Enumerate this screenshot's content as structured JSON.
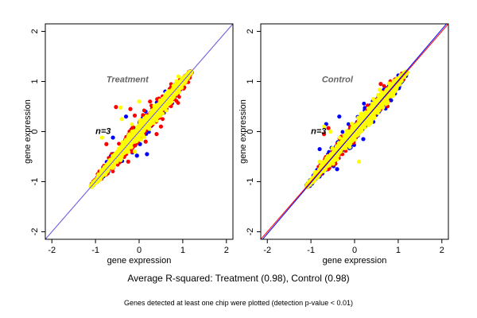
{
  "chart_data": [
    {
      "type": "scatter",
      "title": "Treatment",
      "annotation": "n=3",
      "xlabel": "gene expression",
      "ylabel": "gene expression",
      "xlim": [
        -2.15,
        2.15
      ],
      "ylim": [
        -2.15,
        2.15
      ],
      "xticks": [
        "-2",
        "-1",
        "0",
        "1",
        "2"
      ],
      "yticks": [
        "-2",
        "-1",
        "0",
        "1",
        "2"
      ],
      "grid": false,
      "reference_lines": [
        {
          "slope": 1,
          "intercept": 0,
          "color": "#ff8c00"
        },
        {
          "slope": 1,
          "intercept": 0,
          "color": "#6060ff"
        }
      ],
      "cloud": {
        "x_range": [
          -1.1,
          1.2
        ],
        "spread": {
          "blue": 0.16,
          "red": 0.2,
          "yellow": 0.14
        },
        "seed": 7
      },
      "series": [
        {
          "name": "blue",
          "color": "#0000ff",
          "points": [
            [
              0.6,
              0.8
            ],
            [
              0.7,
              0.55
            ],
            [
              0.18,
              -0.45
            ],
            [
              0.02,
              -0.25
            ],
            [
              -0.05,
              -0.48
            ],
            [
              -0.3,
              0.3
            ],
            [
              -0.6,
              -0.12
            ]
          ]
        },
        {
          "name": "red",
          "color": "#ff0000",
          "points": [
            [
              -0.53,
              0.49
            ],
            [
              -0.2,
              0.45
            ],
            [
              0.25,
              0.6
            ],
            [
              -0.1,
              0.32
            ],
            [
              0.5,
              0.1
            ],
            [
              0.4,
              -0.05
            ],
            [
              0.15,
              -0.2
            ],
            [
              -0.75,
              -0.25
            ],
            [
              -0.25,
              -0.6
            ],
            [
              -0.3,
              -0.45
            ],
            [
              0.7,
              0.85
            ],
            [
              0.4,
              0.45
            ]
          ]
        },
        {
          "name": "yellow",
          "color": "#ffff00",
          "points": [
            [
              -0.42,
              0.48
            ],
            [
              -0.4,
              0.25
            ],
            [
              0.0,
              0.6
            ],
            [
              -0.85,
              -0.12
            ],
            [
              -0.1,
              -0.4
            ],
            [
              0.9,
              1.1
            ]
          ]
        }
      ]
    },
    {
      "type": "scatter",
      "title": "Control",
      "annotation": "n=3",
      "xlabel": "gene expression",
      "ylabel": "gene expression",
      "xlim": [
        -2.15,
        2.15
      ],
      "ylim": [
        -2.15,
        2.15
      ],
      "xticks": [
        "-2",
        "-1",
        "0",
        "1",
        "2"
      ],
      "yticks": [
        "-2",
        "-1",
        "0",
        "1",
        "2"
      ],
      "grid": false,
      "reference_lines": [
        {
          "slope": 1,
          "intercept": 0,
          "color": "#ff0000"
        },
        {
          "slope": 1.02,
          "intercept": 0,
          "color": "#0000ff"
        }
      ],
      "cloud": {
        "x_range": [
          -1.1,
          1.2
        ],
        "spread": {
          "blue": 0.2,
          "red": 0.17,
          "yellow": 0.15
        },
        "seed": 13
      },
      "series": [
        {
          "name": "blue",
          "color": "#0000ff",
          "points": [
            [
              -0.65,
              0.15
            ],
            [
              -0.35,
              0.3
            ],
            [
              -0.8,
              -0.35
            ],
            [
              -0.4,
              -0.75
            ],
            [
              0.3,
              0.3
            ],
            [
              0.2,
              -0.15
            ],
            [
              -0.05,
              0.05
            ]
          ]
        },
        {
          "name": "red",
          "color": "#ff0000",
          "points": [
            [
              -0.6,
              0.07
            ],
            [
              -0.7,
              -0.05
            ],
            [
              0.6,
              0.95
            ],
            [
              -0.3,
              -0.1
            ]
          ]
        },
        {
          "name": "yellow",
          "color": "#ffff00",
          "points": [
            [
              -0.7,
              0.1
            ],
            [
              -0.55,
              0.0
            ],
            [
              0.1,
              -0.6
            ],
            [
              -0.8,
              -0.6
            ]
          ]
        }
      ]
    }
  ],
  "caption": "Average R-squared: Treatment (0.98), Control (0.98)",
  "footnote": "Genes detected at least one chip were plotted (detection p-value < 0.01)"
}
